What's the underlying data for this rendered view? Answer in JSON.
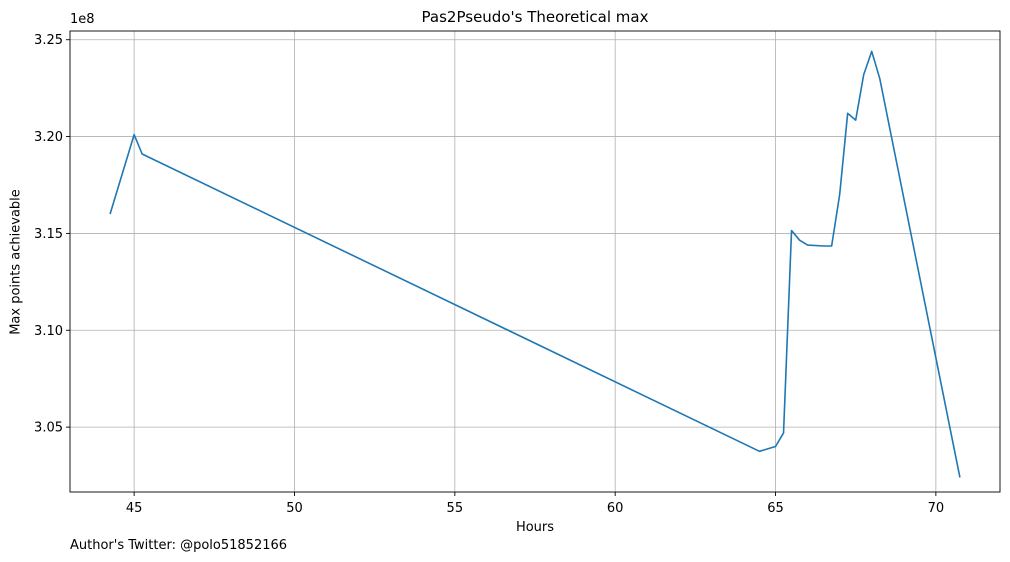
{
  "chart_data": {
    "type": "line",
    "title": "Pas2Pseudo's Theoretical max",
    "xlabel": "Hours",
    "ylabel": "Max points achievable",
    "y_offset_label": "1e8",
    "y_scale": 100000000,
    "xlim": [
      43,
      72
    ],
    "ylim": [
      3.0165,
      3.2545
    ],
    "x_ticks": [
      45,
      50,
      55,
      60,
      65,
      70
    ],
    "y_ticks": [
      3.05,
      3.1,
      3.15,
      3.2,
      3.25
    ],
    "y_tick_labels": [
      "3.05",
      "3.10",
      "3.15",
      "3.20",
      "3.25"
    ],
    "grid": true,
    "line_color": "#1f77b4",
    "series": [
      {
        "x": [
          44.25,
          45.0,
          45.25,
          64.5,
          65.0,
          65.25,
          65.5,
          65.75,
          66.0,
          66.5,
          66.75,
          67.0,
          67.25,
          67.5,
          67.75,
          68.0,
          68.25,
          70.75
        ],
        "y": [
          3.16,
          3.201,
          3.191,
          3.0375,
          3.04,
          3.047,
          3.1515,
          3.1465,
          3.144,
          3.1435,
          3.1435,
          3.17,
          3.212,
          3.2085,
          3.232,
          3.244,
          3.23,
          3.024
        ]
      }
    ]
  },
  "footnote": "Author's Twitter: @polo51852166"
}
